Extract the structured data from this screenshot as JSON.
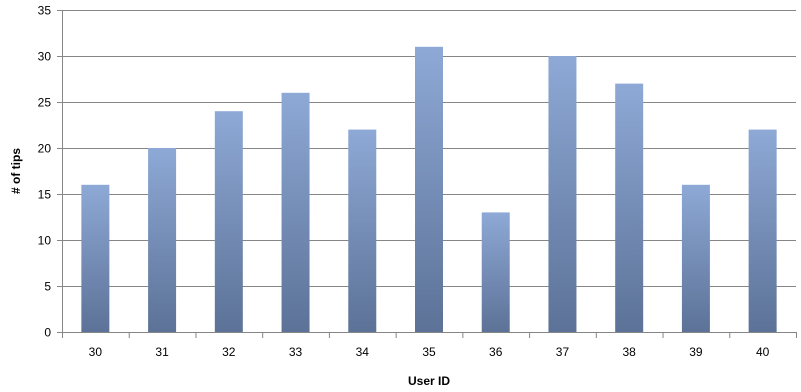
{
  "chart_data": {
    "type": "bar",
    "title": "",
    "xlabel": "User ID",
    "ylabel": "# of tips",
    "categories": [
      "30",
      "31",
      "32",
      "33",
      "34",
      "35",
      "36",
      "37",
      "38",
      "39",
      "40"
    ],
    "values": [
      16,
      20,
      24,
      26,
      22,
      31,
      13,
      30,
      27,
      16,
      22
    ],
    "ylim": [
      0,
      35
    ],
    "yticks": [
      "0",
      "5",
      "10",
      "15",
      "20",
      "25",
      "30",
      "35"
    ],
    "grid": true,
    "legend": "none",
    "bar_color_top": "#8ea9d6",
    "bar_color_bottom": "#5c7297",
    "grid_color": "#868686"
  }
}
